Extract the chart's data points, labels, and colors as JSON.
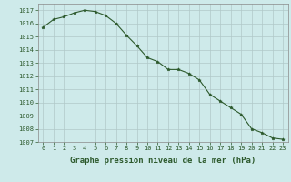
{
  "x": [
    0,
    1,
    2,
    3,
    4,
    5,
    6,
    7,
    8,
    9,
    10,
    11,
    12,
    13,
    14,
    15,
    16,
    17,
    18,
    19,
    20,
    21,
    22,
    23
  ],
  "y": [
    1015.7,
    1016.3,
    1016.5,
    1016.8,
    1017.0,
    1016.9,
    1016.6,
    1016.0,
    1015.1,
    1014.3,
    1013.4,
    1013.1,
    1012.5,
    1012.5,
    1012.2,
    1011.7,
    1010.6,
    1010.1,
    1009.6,
    1009.1,
    1008.0,
    1007.7,
    1007.3,
    1007.2
  ],
  "ylim": [
    1007,
    1017.5
  ],
  "yticks": [
    1007,
    1008,
    1009,
    1010,
    1011,
    1012,
    1013,
    1014,
    1015,
    1016,
    1017
  ],
  "xticks": [
    0,
    1,
    2,
    3,
    4,
    5,
    6,
    7,
    8,
    9,
    10,
    11,
    12,
    13,
    14,
    15,
    16,
    17,
    18,
    19,
    20,
    21,
    22,
    23
  ],
  "xlabel": "Graphe pression niveau de la mer (hPa)",
  "line_color": "#2d5a2d",
  "marker": "*",
  "bg_color": "#ceeaea",
  "grid_color": "#b0c8c8",
  "text_color": "#2d5a2d",
  "tick_label_size": 5.0,
  "xlabel_size": 6.5,
  "figwidth": 3.2,
  "figheight": 2.0,
  "dpi": 100
}
